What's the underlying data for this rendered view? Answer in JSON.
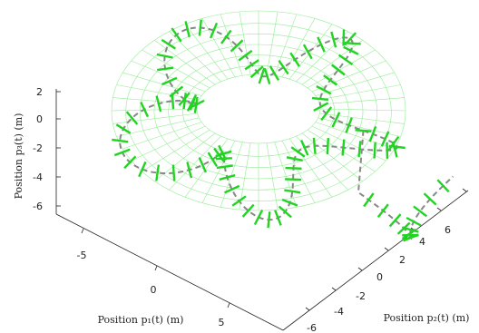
{
  "chart_data": {
    "type": "scatter",
    "title": "",
    "xlabel": "Position p₁(t) (m)",
    "ylabel": "Position p₂(t) (m)",
    "zlabel": "Position p₃(t) (m)",
    "x_ticks": [
      -5,
      0,
      5
    ],
    "y_ticks": [
      -6,
      -4,
      -2,
      0,
      2,
      4,
      6
    ],
    "z_ticks": [
      2,
      0,
      -2,
      -4,
      -6
    ],
    "grid": false,
    "series": [
      {
        "value_note": "",
        "values": []
      }
    ]
  }
}
